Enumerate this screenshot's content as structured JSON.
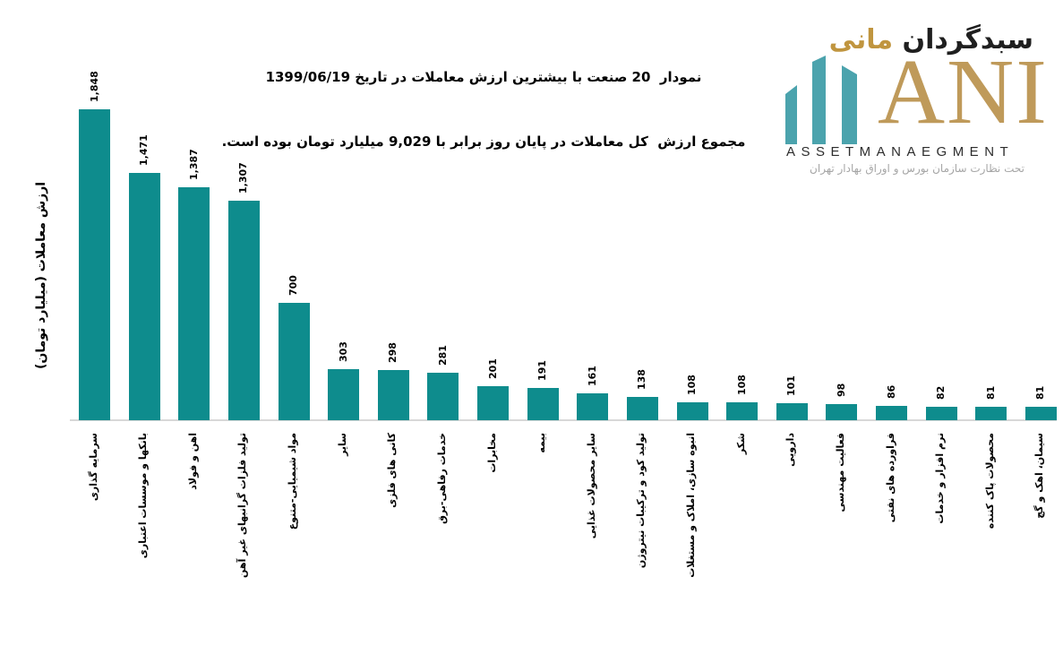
{
  "chart_data": {
    "type": "bar",
    "title": "نمودار  20 صنعت با بیشترین ارزش معاملات در تاریخ 1399/06/19",
    "subtitle": "مجموع ارزش  کل معاملات در پایان روز برابر با 9,029 میلیارد تومان بوده است.",
    "total_value_billion_toman": "9,029",
    "date": "1399/06/19",
    "xlabel": "",
    "ylabel": "ارزش معاملات (میلیارد تومان)",
    "categories": [
      "سرمایه گذاری",
      "بانکها و موسسات اعتباری",
      "اهن و فولاد",
      "تولید فلزات گرانبهای غیر آهن",
      "مواد شیمیایی-متنوع",
      "سایر",
      "کانی های فلزی",
      "خدمات رفاهی-برق",
      "مخابرات",
      "بیمه",
      "سایر محصولات غذایی",
      "تولید کود و ترکیبات نیتروژن",
      "انبوه سازی، املاک و مستغلات",
      "شکر",
      "دارویی",
      "فعالیت مهندسی",
      "فراورده های نفتی",
      "نرم افزار و خدمات",
      "محصولات پاک کننده",
      "سیمان، اهک و گچ"
    ],
    "values": [
      1848,
      1471,
      1387,
      1307,
      700,
      303,
      298,
      281,
      201,
      191,
      161,
      138,
      108,
      108,
      101,
      98,
      86,
      82,
      81,
      81
    ],
    "value_labels": [
      "1,848",
      "1,471",
      "1,387",
      "1,307",
      "700",
      "303",
      "298",
      "281",
      "201",
      "191",
      "161",
      "138",
      "108",
      "108",
      "101",
      "98",
      "86",
      "82",
      "81",
      "81"
    ],
    "bar_color": "#0e8c8d",
    "axis_line_color": "#d8d8d8",
    "ylim": [
      0,
      1900
    ],
    "grid": false,
    "legend": null
  },
  "logo": {
    "brand_fa_first": "سبدگردان",
    "brand_fa_second": "مانی",
    "brand_en": "ANI",
    "subtitle_en": "ASSETMANAEGMENT",
    "tagline_fa": "تحت نظارت سازمان بورس و اوراق بهادار تهران",
    "colors": {
      "bars_teal": "#4ba3ad",
      "gold": "#bf9a5a",
      "dark": "#1f1f1f",
      "gray": "#a6a6a6"
    }
  }
}
